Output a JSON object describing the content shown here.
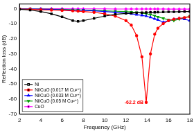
{
  "chart_data": {
    "type": "line",
    "x_label": "Frequency (GHz)",
    "y_label": "Reflection loss (dB)",
    "x": [
      2,
      3,
      4,
      5,
      6,
      7,
      7.5,
      8,
      9,
      10,
      11,
      12,
      12.5,
      13,
      13.5,
      13.9,
      14.3,
      14.7,
      15,
      15.5,
      16,
      16.5,
      17,
      17.5,
      18
    ],
    "xlim": [
      2,
      18
    ],
    "xticks": [
      2,
      4,
      6,
      8,
      10,
      12,
      14,
      16,
      18
    ],
    "ylim": [
      -70,
      3
    ],
    "yticks": [
      -70,
      -60,
      -50,
      -40,
      -30,
      -20,
      -10,
      0
    ],
    "grid": false,
    "legend": "lower left",
    "series": [
      {
        "name": "Ni",
        "color": "#000000",
        "marker": "square",
        "values": [
          -0.5,
          -1,
          -2,
          -3.5,
          -5.5,
          -8,
          -8.5,
          -8,
          -6.5,
          -5,
          -3.8,
          -3.2,
          -3,
          -2.8,
          -2.7,
          -2.6,
          -2.5,
          -2.5,
          -2.4,
          -2.3,
          -2.2,
          -2.2,
          -2.1,
          -2,
          -2
        ]
      },
      {
        "name": "Ni/CuO (0.017 M Cu²⁺)",
        "color": "#ff0000",
        "marker": "circle",
        "values": [
          -0.3,
          -0.5,
          -0.8,
          -1,
          -1.2,
          -1.5,
          -1.7,
          -2,
          -2.5,
          -3.5,
          -5,
          -8,
          -11,
          -18,
          -32,
          -62.2,
          -30,
          -17,
          -13,
          -10,
          -8,
          -7,
          -6.5,
          -6,
          -5.5
        ]
      },
      {
        "name": "Ni/CuO (0.033 M Cu²⁺)",
        "color": "#0000ff",
        "marker": "triangle",
        "values": [
          -0.2,
          -0.3,
          -0.5,
          -0.6,
          -0.8,
          -1,
          -1.1,
          -1.2,
          -1.5,
          -2,
          -2.5,
          -3,
          -3.5,
          -4,
          -4.5,
          -5,
          -5.8,
          -6.8,
          -7.5,
          -9,
          -8,
          -7,
          -6.5,
          -7,
          -8
        ]
      },
      {
        "name": "Ni/CuO (0.05 M Cu²⁺)",
        "color": "#00a000",
        "marker": "triangle_down",
        "values": [
          -0.2,
          -0.3,
          -0.4,
          -0.5,
          -0.6,
          -0.8,
          -0.9,
          -1,
          -1.2,
          -1.5,
          -1.8,
          -2,
          -2.3,
          -2.6,
          -3,
          -3.4,
          -4,
          -4.8,
          -5.5,
          -6.5,
          -7.5,
          -8,
          -7,
          -6,
          -5
        ]
      },
      {
        "name": "CuO",
        "color": "#ff00ff",
        "marker": "diamond",
        "values": [
          -0.1,
          -0.1,
          -0.1,
          -0.1,
          -0.1,
          -0.2,
          -0.2,
          -0.2,
          -0.2,
          -0.2,
          -0.3,
          -0.3,
          -0.3,
          -0.3,
          -0.3,
          -0.3,
          -0.3,
          -0.3,
          -0.3,
          -0.3,
          -0.4,
          -0.4,
          -0.4,
          -0.4,
          -0.4
        ]
      }
    ],
    "annotations": [
      {
        "text": "-62.2 dB",
        "x": 13.9,
        "y": -62.2,
        "color": "#ff0000"
      }
    ]
  }
}
